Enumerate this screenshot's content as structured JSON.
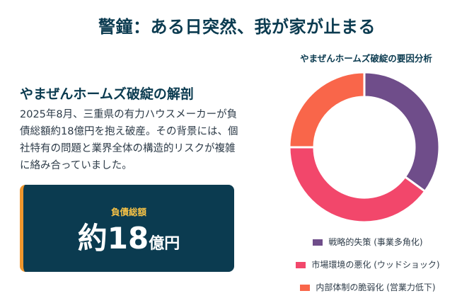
{
  "title": "警鐘：ある日突然、我が家が止まる",
  "section": {
    "heading": "やまぜんホームズ破綻の解剖",
    "body": "2025年8月、三重県の有力ハウスメーカーが負債総額約18億円を抱え破産。その背景には、個社特有の問題と業界全体の構造的リスクが複雑に絡み合っていました。"
  },
  "debt_card": {
    "label": "負債総額",
    "value_main": "約18",
    "value_unit": "億円"
  },
  "chart_data": {
    "type": "pie",
    "title": "やまぜんホームズ破綻の要因分析",
    "categories": [
      "戦略的失策 (事業多角化)",
      "市場環境の悪化 (ウッドショック)",
      "内部体制の脆弱化 (営業力低下)"
    ],
    "values": [
      35,
      40,
      25
    ],
    "colors": [
      "#6f4d8a",
      "#f2476b",
      "#f9664a"
    ],
    "legend_position": "bottom"
  }
}
